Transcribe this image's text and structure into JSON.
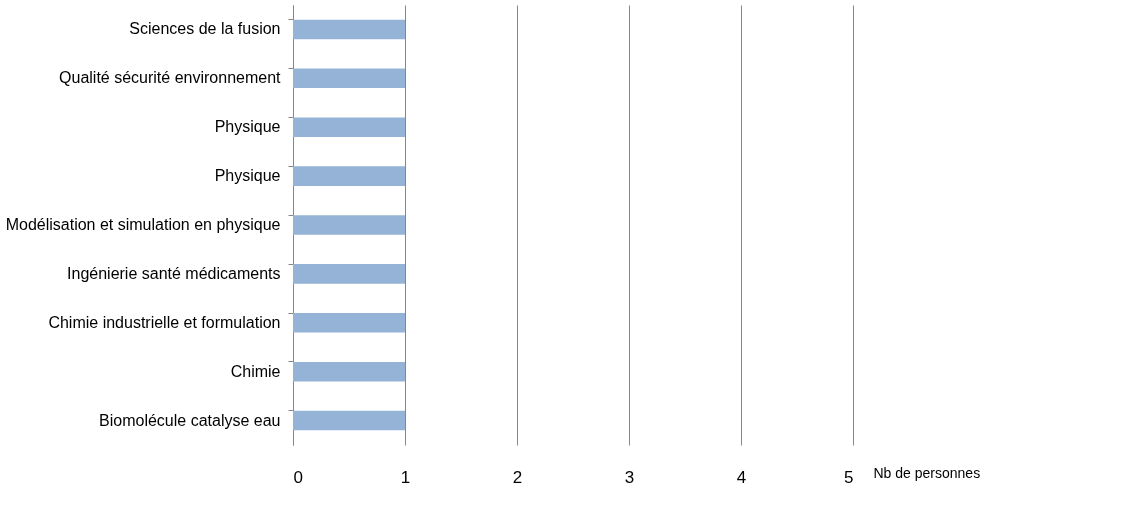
{
  "chart_data": {
    "type": "bar",
    "orientation": "horizontal",
    "categories": [
      "Sciences de la fusion",
      "Qualité sécurité environnement",
      "Physique",
      "Physique",
      "Modélisation et simulation en physique",
      "Ingénierie santé médicaments",
      "Chimie industrielle et formulation",
      "Chimie",
      "Biomolécule catalyse eau"
    ],
    "values": [
      1,
      1,
      1,
      1,
      1,
      1,
      1,
      1,
      1
    ],
    "color": "#95b3d7",
    "xlim": [
      0,
      5
    ],
    "xticks": [
      0,
      1,
      2,
      3,
      4,
      5
    ],
    "xlabel": "Nb de personnes",
    "grid": "x"
  }
}
